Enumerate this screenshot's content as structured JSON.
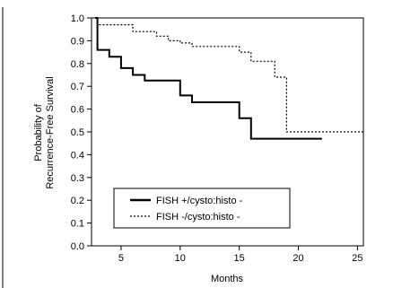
{
  "chart_data": {
    "type": "line",
    "title": "",
    "xlabel": "Months",
    "ylabel_lines": [
      "Probability of",
      "Recurrence-Free Survival"
    ],
    "xlim": [
      2.5,
      25.5
    ],
    "ylim": [
      0,
      1.0
    ],
    "xticks": [
      5,
      10,
      15,
      20,
      25
    ],
    "yticks": [
      0.0,
      0.1,
      0.2,
      0.3,
      0.4,
      0.5,
      0.6,
      0.7,
      0.8,
      0.9,
      1.0
    ],
    "ytick_labels": [
      "0.0",
      "0.1",
      "0.2",
      "0.3",
      "0.4",
      "0.5",
      "0.6",
      "0.7",
      "0.8",
      "0.9",
      "1.0"
    ],
    "grid": false,
    "legend_position": "lower-left",
    "series": [
      {
        "name": "FISH +/cysto:histo -",
        "style": "solid",
        "color": "#000000",
        "x": [
          2.8,
          3.0,
          3.0,
          4.0,
          4.0,
          5.0,
          5.0,
          6.0,
          6.0,
          7.0,
          7.0,
          10.0,
          10.0,
          11.0,
          11.0,
          15.0,
          15.0,
          16.0,
          16.0,
          22.0
        ],
        "y": [
          1.0,
          1.0,
          0.86,
          0.86,
          0.83,
          0.83,
          0.78,
          0.78,
          0.75,
          0.75,
          0.725,
          0.725,
          0.66,
          0.66,
          0.63,
          0.63,
          0.56,
          0.56,
          0.47,
          0.47
        ]
      },
      {
        "name": "FISH -/cysto:histo -",
        "style": "dotted",
        "color": "#000000",
        "x": [
          2.8,
          3.0,
          3.0,
          6.0,
          6.0,
          8.0,
          8.0,
          9.0,
          9.0,
          10.0,
          10.0,
          11.0,
          11.0,
          15.0,
          15.0,
          16.0,
          16.0,
          18.0,
          18.0,
          19.0,
          19.0,
          25.5
        ],
        "y": [
          1.0,
          1.0,
          0.97,
          0.97,
          0.94,
          0.94,
          0.92,
          0.92,
          0.9,
          0.9,
          0.89,
          0.89,
          0.875,
          0.875,
          0.85,
          0.85,
          0.81,
          0.81,
          0.74,
          0.74,
          0.5,
          0.5
        ]
      }
    ]
  },
  "colors": {
    "ink": "#000000",
    "background": "#ffffff"
  }
}
